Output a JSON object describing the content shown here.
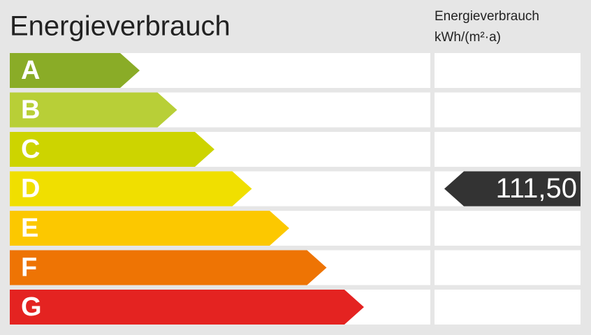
{
  "title": "Energieverbrauch",
  "unit_header": [
    "Energieverbrauch",
    "kWh/(m²·a)"
  ],
  "rows": [
    {
      "label": "A",
      "color": "#8aac27"
    },
    {
      "label": "B",
      "color": "#b8cf37"
    },
    {
      "label": "C",
      "color": "#cdd400"
    },
    {
      "label": "D",
      "color": "#f0df00",
      "value": "111,50"
    },
    {
      "label": "E",
      "color": "#fcc800"
    },
    {
      "label": "F",
      "color": "#ee7404"
    },
    {
      "label": "G",
      "color": "#e42321"
    }
  ]
}
